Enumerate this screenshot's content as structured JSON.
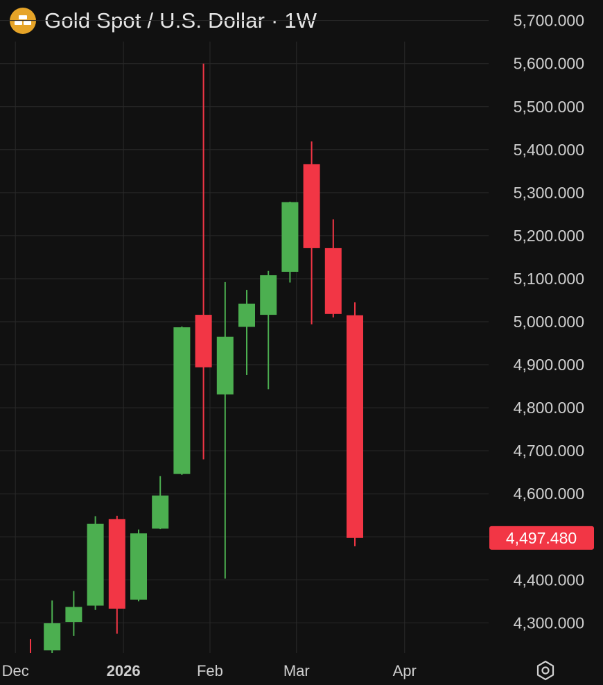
{
  "header": {
    "title": "Gold Spot / U.S. Dollar · 1W",
    "logo_icon": "gold-bars-icon"
  },
  "colors": {
    "background": "#111111",
    "up": "#4caf50",
    "down": "#f23645",
    "grid": "#2a2a2a",
    "price_tag": "#f23645"
  },
  "settings_icon": "gear-hexagon-icon",
  "chart_data": {
    "type": "candlestick",
    "title": "Gold Spot / U.S. Dollar · 1W",
    "ylim": [
      4240,
      5720
    ],
    "y_ticks": [
      5700,
      5600,
      5500,
      5400,
      5300,
      5200,
      5100,
      5000,
      4900,
      4800,
      4700,
      4600,
      4400,
      4300
    ],
    "y_tick_labels": [
      "5,700.000",
      "5,600.000",
      "5,500.000",
      "5,400.000",
      "5,300.000",
      "5,200.000",
      "5,100.000",
      "5,000.000",
      "4,900.000",
      "4,800.000",
      "4,700.000",
      "4,600.000",
      "4,400.000",
      "4,300.000"
    ],
    "x_labels": [
      {
        "label": "Dec",
        "bold": false,
        "index": -0.7
      },
      {
        "label": "2026",
        "bold": true,
        "index": 4.3
      },
      {
        "label": "Feb",
        "bold": false,
        "index": 8.3
      },
      {
        "label": "Mar",
        "bold": false,
        "index": 12.3
      },
      {
        "label": "Apr",
        "bold": false,
        "index": 17.3
      }
    ],
    "current_price": 4497.48,
    "current_price_label": "4,497.480",
    "grid": true,
    "candles": [
      {
        "open": 4225,
        "high": 4262,
        "low": 4170,
        "close": 4200
      },
      {
        "open": 4236,
        "high": 4352,
        "low": 4222,
        "close": 4299
      },
      {
        "open": 4302,
        "high": 4374,
        "low": 4270,
        "close": 4337
      },
      {
        "open": 4340,
        "high": 4548,
        "low": 4330,
        "close": 4530
      },
      {
        "open": 4541,
        "high": 4549,
        "low": 4275,
        "close": 4333
      },
      {
        "open": 4354,
        "high": 4517,
        "low": 4350,
        "close": 4508
      },
      {
        "open": 4519,
        "high": 4641,
        "low": 4518,
        "close": 4596
      },
      {
        "open": 4646,
        "high": 4989,
        "low": 4644,
        "close": 4987
      },
      {
        "open": 5016,
        "high": 5600,
        "low": 4680,
        "close": 4894
      },
      {
        "open": 4831,
        "high": 5092,
        "low": 4403,
        "close": 4965
      },
      {
        "open": 4988,
        "high": 5074,
        "low": 4876,
        "close": 5042
      },
      {
        "open": 5016,
        "high": 5118,
        "low": 4843,
        "close": 5108
      },
      {
        "open": 5116,
        "high": 5279,
        "low": 5091,
        "close": 5278
      },
      {
        "open": 5366,
        "high": 5419,
        "low": 4994,
        "close": 5171
      },
      {
        "open": 5171,
        "high": 5238,
        "low": 5010,
        "close": 5018
      },
      {
        "open": 5015,
        "high": 5045,
        "low": 4478,
        "close": 4497.48
      }
    ]
  }
}
